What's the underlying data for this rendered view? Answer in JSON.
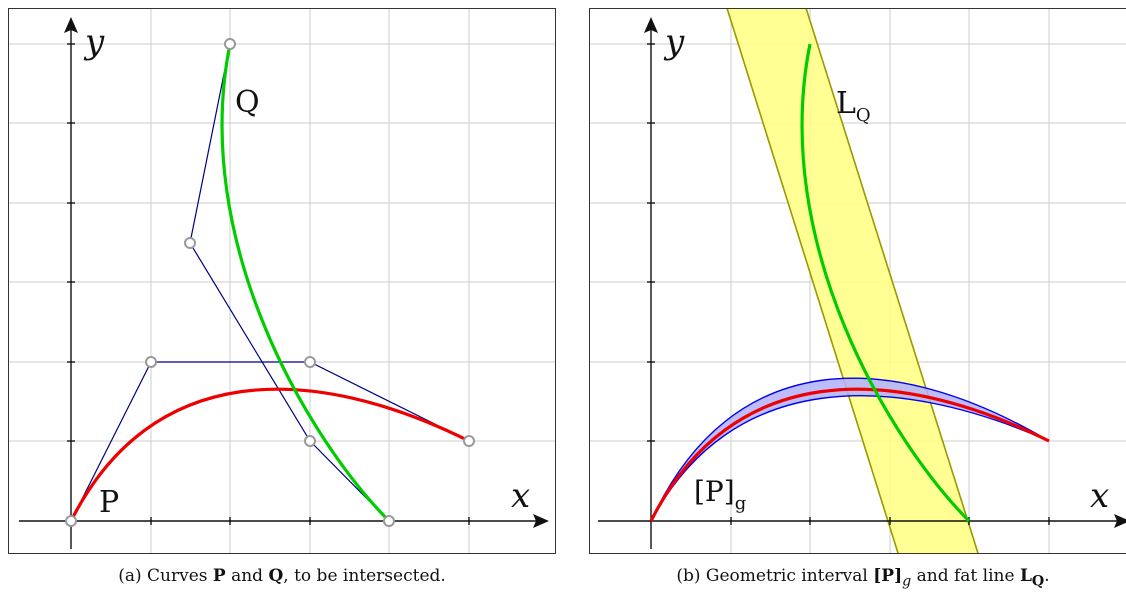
{
  "panel_a": {
    "axis_x_label": "x",
    "axis_y_label": "y",
    "label_p": "P",
    "label_q": "Q",
    "caption": {
      "prefix": "(a) Curves ",
      "p": "P",
      "and": " and ",
      "q": "Q",
      "suffix": ", to be intersected."
    }
  },
  "panel_b": {
    "axis_x_label": "x",
    "axis_y_label": "y",
    "label_lq_main": "L",
    "label_lq_sub": "Q",
    "label_pg_main": "[P]",
    "label_pg_sub": "g",
    "caption": {
      "prefix": "(b) Geometric interval ",
      "pg_main": "[P]",
      "pg_sub": "g",
      "and": " and fat line ",
      "lq_main": "L",
      "lq_sub": "Q",
      "suffix": "."
    }
  },
  "colors": {
    "curve_p": "#ee0000",
    "curve_q": "#00cc00",
    "control_polygon": "#000080",
    "fat_line_fill": "#ffff80",
    "fat_line_stroke": "#999900",
    "interval_fill": "#b0b0ff",
    "interval_stroke": "#0000ee",
    "grid": "#cccccc"
  }
}
